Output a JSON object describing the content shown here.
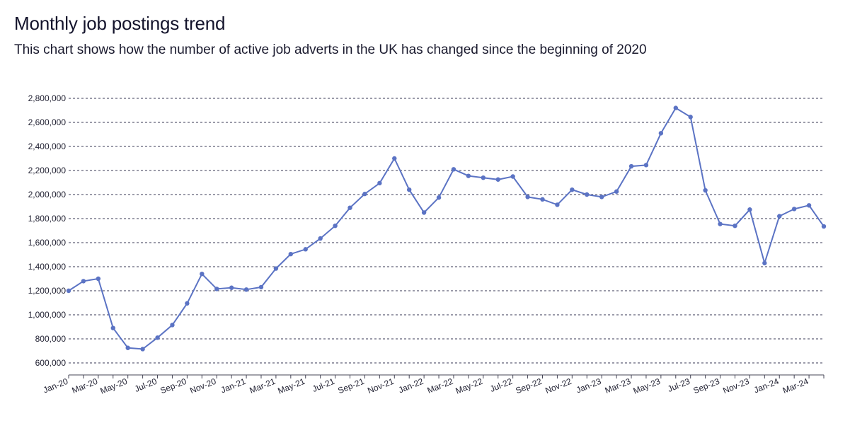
{
  "header": {
    "title": "Monthly job postings trend",
    "subtitle": "This chart shows how the number of active job adverts in the UK has changed since the beginning of 2020"
  },
  "colors": {
    "series": "#5b73c4"
  },
  "chart_data": {
    "type": "line",
    "title": "Monthly job postings trend",
    "subtitle": "This chart shows how the number of active job adverts in the UK has changed since the beginning of 2020",
    "xlabel": "",
    "ylabel": "",
    "ylim": [
      500000,
      2800000
    ],
    "y_ticks": [
      600000,
      800000,
      1000000,
      1200000,
      1400000,
      1600000,
      1800000,
      2000000,
      2200000,
      2400000,
      2600000,
      2800000
    ],
    "y_tick_labels": [
      "600,000",
      "800,000",
      "1,000,000",
      "1,200,000",
      "1,400,000",
      "1,600,000",
      "1,800,000",
      "2,000,000",
      "2,200,000",
      "2,400,000",
      "2,600,000",
      "2,800,000"
    ],
    "x_tick_labels": [
      "Jan-20",
      "Mar-20",
      "May-20",
      "Jul-20",
      "Sep-20",
      "Nov-20",
      "Jan-21",
      "Mar-21",
      "May-21",
      "Jul-21",
      "Sep-21",
      "Nov-21",
      "Jan-22",
      "Mar-22",
      "May-22",
      "Jul-22",
      "Sep-22",
      "Nov-22",
      "Jan-23",
      "Mar-23",
      "May-23",
      "Jul-23",
      "Sep-23",
      "Nov-23",
      "Jan-24",
      "Mar-24"
    ],
    "grid": true,
    "legend": "none",
    "x": [
      "Jan-20",
      "Feb-20",
      "Mar-20",
      "Apr-20",
      "May-20",
      "Jun-20",
      "Jul-20",
      "Aug-20",
      "Sep-20",
      "Oct-20",
      "Nov-20",
      "Dec-20",
      "Jan-21",
      "Feb-21",
      "Mar-21",
      "Apr-21",
      "May-21",
      "Jun-21",
      "Jul-21",
      "Aug-21",
      "Sep-21",
      "Oct-21",
      "Nov-21",
      "Dec-21",
      "Jan-22",
      "Feb-22",
      "Mar-22",
      "Apr-22",
      "May-22",
      "Jun-22",
      "Jul-22",
      "Aug-22",
      "Sep-22",
      "Oct-22",
      "Nov-22",
      "Dec-22",
      "Jan-23",
      "Feb-23",
      "Mar-23",
      "Apr-23",
      "May-23",
      "Jun-23",
      "Jul-23",
      "Aug-23",
      "Sep-23",
      "Oct-23",
      "Nov-23",
      "Dec-23",
      "Jan-24",
      "Feb-24",
      "Mar-24",
      "Apr-24"
    ],
    "series": [
      {
        "values": [
          1200000,
          1280000,
          1300000,
          890000,
          725000,
          715000,
          810000,
          915000,
          1095000,
          1340000,
          1215000,
          1225000,
          1210000,
          1230000,
          1385000,
          1505000,
          1545000,
          1635000,
          1740000,
          1890000,
          2005000,
          2095000,
          2300000,
          2040000,
          1850000,
          1975000,
          2210000,
          2155000,
          2140000,
          2125000,
          2150000,
          1980000,
          1960000,
          1915000,
          2040000,
          2000000,
          1980000,
          2025000,
          2235000,
          2245000,
          2510000,
          2720000,
          2645000,
          2035000,
          1755000,
          1740000,
          1875000,
          1430000,
          1820000,
          1880000,
          1910000,
          1735000
        ]
      }
    ]
  }
}
